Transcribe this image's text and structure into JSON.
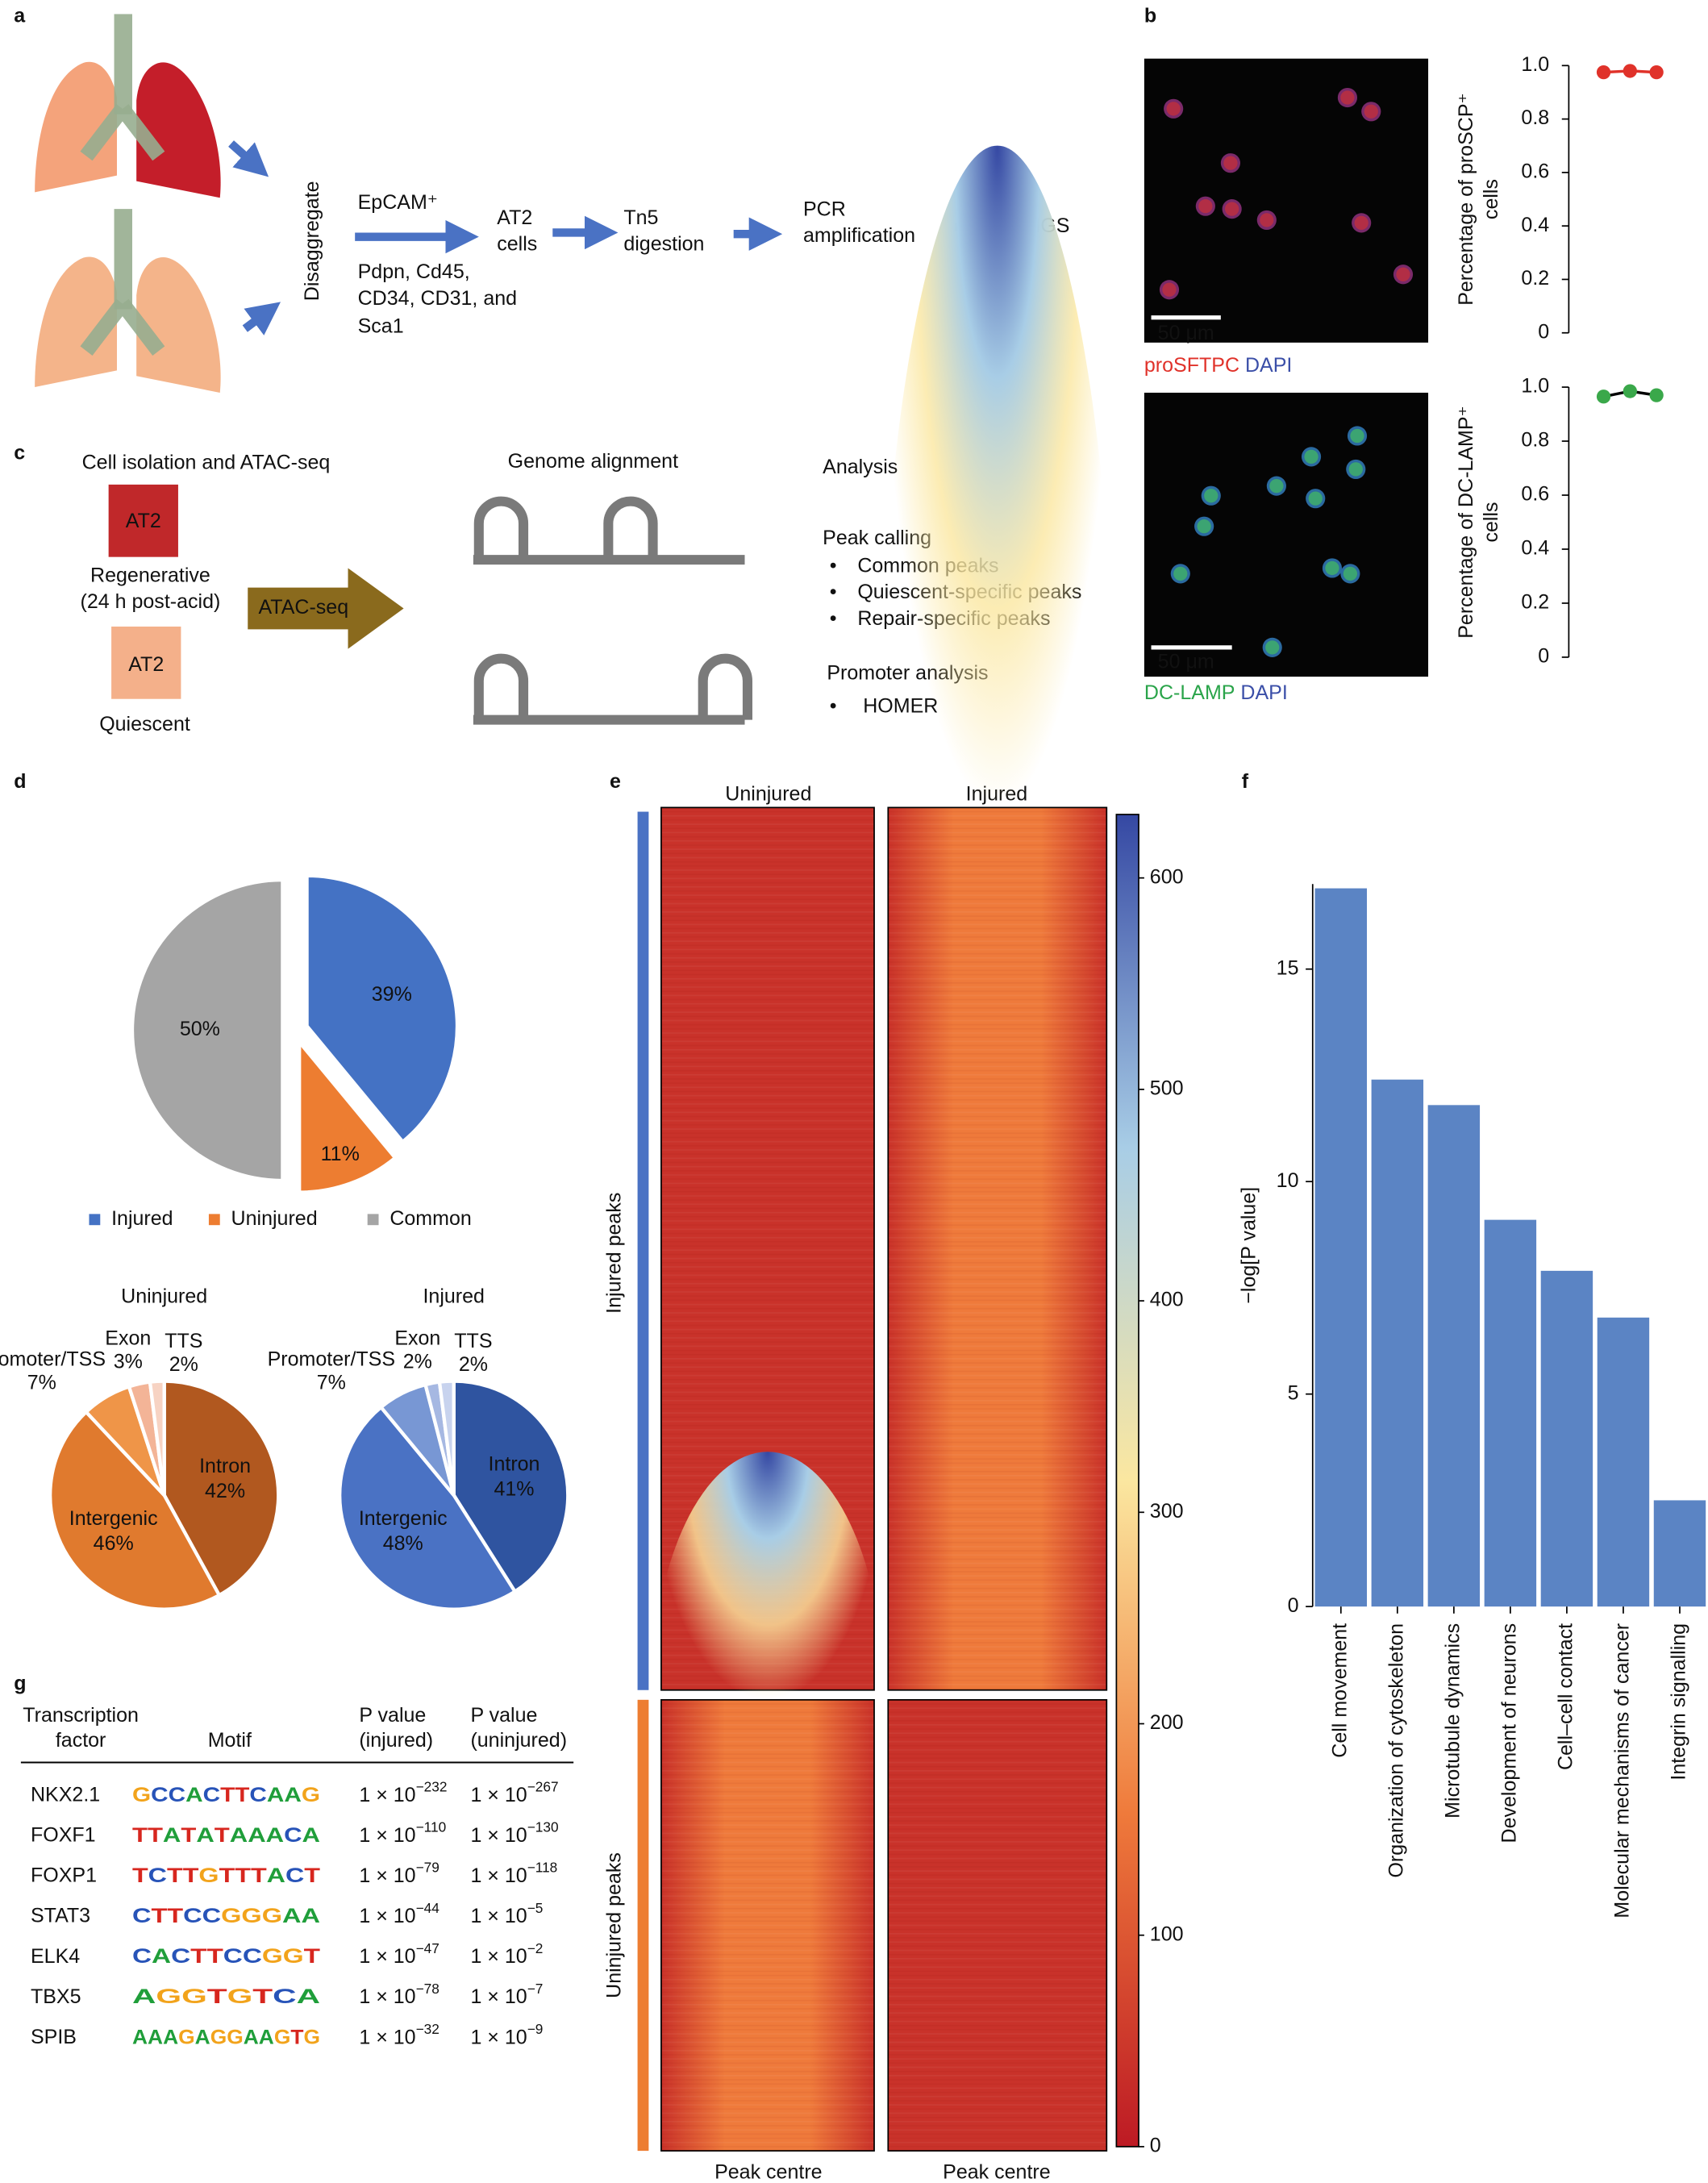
{
  "panel_labels": {
    "a": "a",
    "b": "b",
    "c": "c",
    "d": "d",
    "e": "e",
    "f": "f",
    "g": "g"
  },
  "panel_a": {
    "step1": "Disaggregate",
    "epcam": "EpCAM⁺",
    "at2_cells": [
      "AT2",
      "cells"
    ],
    "excluded": [
      "Pdpn, Cd45,",
      "CD34, CD31, and",
      "Sca1"
    ],
    "tn5": [
      "Tn5",
      "digestion"
    ],
    "pcr": [
      "PCR",
      "amplification"
    ],
    "ngs": "NGS"
  },
  "panel_b": {
    "scale_bars": [
      "50 μm",
      "50 μm"
    ],
    "stains": [
      [
        "proSFTPC",
        "DAPI"
      ],
      [
        "DC-LAMP",
        "DAPI"
      ]
    ]
  },
  "panel_c": {
    "title": "Cell isolation and ATAC-seq",
    "boxes": [
      "AT2",
      "AT2"
    ],
    "regenerative": [
      "Regenerative",
      "(24 h post-acid)"
    ],
    "quiescent": "Quiescent",
    "arrow": "ATAC-seq",
    "alignment": "Genome alignment",
    "analysis": "Analysis",
    "peak_calling": "Peak calling",
    "peaks": [
      "Common peaks",
      "Quiescent-specific peaks",
      "Repair-specific peaks"
    ],
    "promoter": "Promoter analysis",
    "tools": [
      "HOMER"
    ],
    "bullet": "•"
  },
  "panel_e": {
    "columns": [
      "Uninjured",
      "Injured"
    ],
    "rows": [
      "Injured peaks",
      "Uninjured peaks"
    ],
    "x_labels": [
      "Peak centre",
      "Peak centre"
    ]
  },
  "panel_g": {
    "header": [
      [
        "Transcription",
        "factor"
      ],
      [
        "Motif"
      ],
      [
        "P value",
        "(injured)"
      ],
      [
        "P value",
        "(uninjured)"
      ]
    ],
    "rows": [
      {
        "factor": "NKX2.1",
        "motif": "GCCACTTCAAG",
        "p_injured": {
          "base": "1 × 10",
          "exponent": "−232"
        },
        "p_uninjured": {
          "base": "1 × 10",
          "exponent": "−267"
        }
      },
      {
        "factor": "FOXF1",
        "motif": "TTATATAAACA",
        "p_injured": {
          "base": "1 × 10",
          "exponent": "−110"
        },
        "p_uninjured": {
          "base": "1 × 10",
          "exponent": "−130"
        }
      },
      {
        "factor": "FOXP1",
        "motif": "TCTTGTTTACT",
        "p_injured": {
          "base": "1 × 10",
          "exponent": "−79"
        },
        "p_uninjured": {
          "base": "1 × 10",
          "exponent": "−118"
        }
      },
      {
        "factor": "STAT3",
        "motif": "CTTCCGGGAA",
        "p_injured": {
          "base": "1 × 10",
          "exponent": "−44"
        },
        "p_uninjured": {
          "base": "1 × 10",
          "exponent": "−5"
        }
      },
      {
        "factor": "ELK4",
        "motif": "CACTTCCGGT",
        "p_injured": {
          "base": "1 × 10",
          "exponent": "−47"
        },
        "p_uninjured": {
          "base": "1 × 10",
          "exponent": "−2"
        }
      },
      {
        "factor": "TBX5",
        "motif": "AGGTGTCA",
        "p_injured": {
          "base": "1 × 10",
          "exponent": "−78"
        },
        "p_uninjured": {
          "base": "1 × 10",
          "exponent": "−7"
        }
      },
      {
        "factor": "SPIB",
        "motif": "AAAGAGGAAGTG",
        "p_injured": {
          "base": "1 × 10",
          "exponent": "−32"
        },
        "p_uninjured": {
          "base": "1 × 10",
          "exponent": "−9"
        }
      }
    ]
  },
  "chart_data": [
    {
      "type": "dot",
      "y_label": [
        "Percentage of proSCP⁺",
        "cells"
      ],
      "values": [
        0.975,
        0.98,
        0.975
      ],
      "color": "#e0322a",
      "line_color": "#e0322a",
      "ylim": [
        0,
        1
      ],
      "yticks": [
        0,
        0.2,
        0.4,
        0.6,
        0.8,
        {
          "value": 1,
          "label": "1.0"
        }
      ]
    },
    {
      "type": "dot",
      "y_label": [
        "Percentage of DC-LAMP⁺",
        "cells"
      ],
      "values": [
        0.965,
        0.985,
        0.97
      ],
      "color": "#3aa84a",
      "line_color": "#000000",
      "ylim": [
        0,
        1
      ],
      "yticks": [
        0,
        0.2,
        0.4,
        0.6,
        0.8,
        {
          "value": 1,
          "label": "1.0"
        }
      ]
    },
    {
      "type": "pie",
      "categories": [
        "Injured",
        "Uninjured",
        "Common"
      ],
      "values": [
        39,
        11,
        50
      ],
      "value_labels": [
        "39%",
        "11%",
        "50%"
      ],
      "colors": [
        "#4472c4",
        "#ed7d31",
        "#a5a5a5"
      ],
      "legend": "bottom"
    },
    {
      "type": "pie",
      "title": "Uninjured",
      "categories": [
        "Intron",
        "Intergenic",
        "Promoter/TSS",
        "Exon",
        "TTS"
      ],
      "values": [
        42,
        46,
        7,
        3,
        2
      ],
      "value_labels": [
        "42%",
        "46%",
        "7%",
        "3%",
        "2%"
      ],
      "colors": [
        "#b1581f",
        "#e07a2e",
        "#ef9548",
        "#f3b497",
        "#f7d3c3"
      ]
    },
    {
      "type": "pie",
      "title": "Injured",
      "categories": [
        "Intron",
        "Intergenic",
        "Promoter/TSS",
        "Exon",
        "TTS"
      ],
      "values": [
        41,
        48,
        7,
        2,
        2
      ],
      "value_labels": [
        "41%",
        "48%",
        "7%",
        "2%",
        "2%"
      ],
      "colors": [
        "#2f54a0",
        "#4a72c4",
        "#7897d4",
        "#a6b8e2",
        "#c8d3ee"
      ]
    },
    {
      "type": "colorbar",
      "ylim": [
        0,
        630
      ],
      "yticks": [
        0,
        100,
        200,
        300,
        400,
        500,
        600
      ],
      "colors": [
        "#bd1a24",
        "#ef7a3b",
        "#fbe7a0",
        "#a8cde6",
        "#3548a3"
      ]
    },
    {
      "type": "bar",
      "y_label": "−log[P value]",
      "categories": [
        "Cell movement",
        "Organization of cytoskeleton",
        "Microtubule dynamics",
        "Development of neurons",
        "Cell–cell contact",
        "Molecular mechanisms of cancer",
        "Integrin signalling"
      ],
      "values": [
        16.9,
        12.4,
        11.8,
        9.1,
        7.9,
        6.8,
        2.5
      ],
      "color": "#5b84c4",
      "ylim": [
        0,
        17
      ],
      "yticks": [
        0,
        5,
        10,
        15
      ]
    }
  ]
}
